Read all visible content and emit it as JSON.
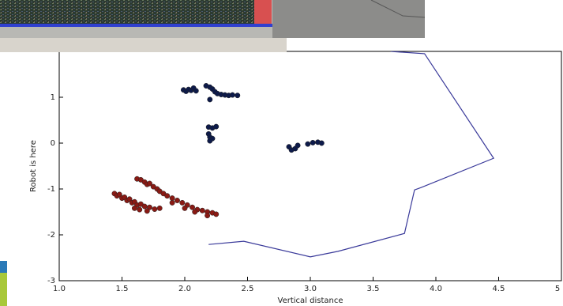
{
  "chart_data": {
    "type": "scatter",
    "xlabel": "Vertical distance",
    "ylabel": "Robot is here",
    "xlim": [
      1,
      5
    ],
    "ylim": [
      -3,
      2
    ],
    "xticks": [
      {
        "value": 1,
        "label": "1.0"
      },
      1.5,
      {
        "value": 2,
        "label": "2.0"
      },
      2.5,
      {
        "value": 3,
        "label": "3.0"
      },
      3.5,
      {
        "value": 4,
        "label": "4.0"
      },
      4.5,
      5
    ],
    "yticks": [
      -3,
      -2,
      -1,
      0,
      1
    ],
    "series": [
      {
        "type": "line",
        "color": "#3a3a9a",
        "x": [
          2.19,
          2.47,
          3.0,
          3.22,
          3.75,
          3.83,
          3.88,
          4.46,
          3.91,
          3.64
        ],
        "values": [
          -2.21,
          -2.14,
          -2.48,
          -2.36,
          -1.97,
          -1.02,
          -0.97,
          -0.33,
          1.95,
          2.0
        ]
      },
      {
        "type": "scatter",
        "color": "#0d1a4a",
        "x": [
          1.99,
          2.01,
          2.03,
          2.05,
          2.07,
          2.09,
          2.17,
          2.2,
          2.22,
          2.24,
          2.26,
          2.29,
          2.32,
          2.35,
          2.38,
          2.42,
          2.2,
          2.19,
          2.22,
          2.25,
          2.19,
          2.2,
          2.22,
          2.2,
          2.83,
          2.85,
          2.88,
          2.9,
          2.98,
          3.02,
          3.06,
          3.09
        ],
        "values": [
          1.16,
          1.13,
          1.17,
          1.15,
          1.2,
          1.14,
          1.25,
          1.22,
          1.18,
          1.12,
          1.08,
          1.06,
          1.05,
          1.04,
          1.05,
          1.04,
          0.95,
          0.35,
          0.33,
          0.36,
          0.2,
          0.13,
          0.1,
          0.05,
          -0.08,
          -0.15,
          -0.12,
          -0.05,
          -0.02,
          0.01,
          0.02,
          0.0
        ]
      },
      {
        "type": "scatter",
        "color": "#8a1a14",
        "x": [
          1.44,
          1.46,
          1.48,
          1.5,
          1.52,
          1.54,
          1.56,
          1.58,
          1.6,
          1.62,
          1.65,
          1.68,
          1.72,
          1.76,
          1.8,
          1.6,
          1.64,
          1.7,
          1.62,
          1.65,
          1.68,
          1.7,
          1.72,
          1.75,
          1.78,
          1.8,
          1.83,
          1.86,
          1.9,
          1.94,
          1.98,
          2.02,
          2.06,
          2.1,
          2.14,
          2.18,
          2.22,
          2.25,
          1.9,
          2.0,
          2.08,
          2.18
        ],
        "values": [
          -1.1,
          -1.15,
          -1.12,
          -1.2,
          -1.18,
          -1.25,
          -1.22,
          -1.3,
          -1.28,
          -1.35,
          -1.33,
          -1.38,
          -1.4,
          -1.44,
          -1.42,
          -1.42,
          -1.45,
          -1.48,
          -0.78,
          -0.8,
          -0.85,
          -0.9,
          -0.88,
          -0.95,
          -1.0,
          -1.05,
          -1.1,
          -1.15,
          -1.2,
          -1.25,
          -1.3,
          -1.35,
          -1.4,
          -1.45,
          -1.47,
          -1.5,
          -1.52,
          -1.55,
          -1.3,
          -1.42,
          -1.5,
          -1.58
        ]
      }
    ]
  }
}
